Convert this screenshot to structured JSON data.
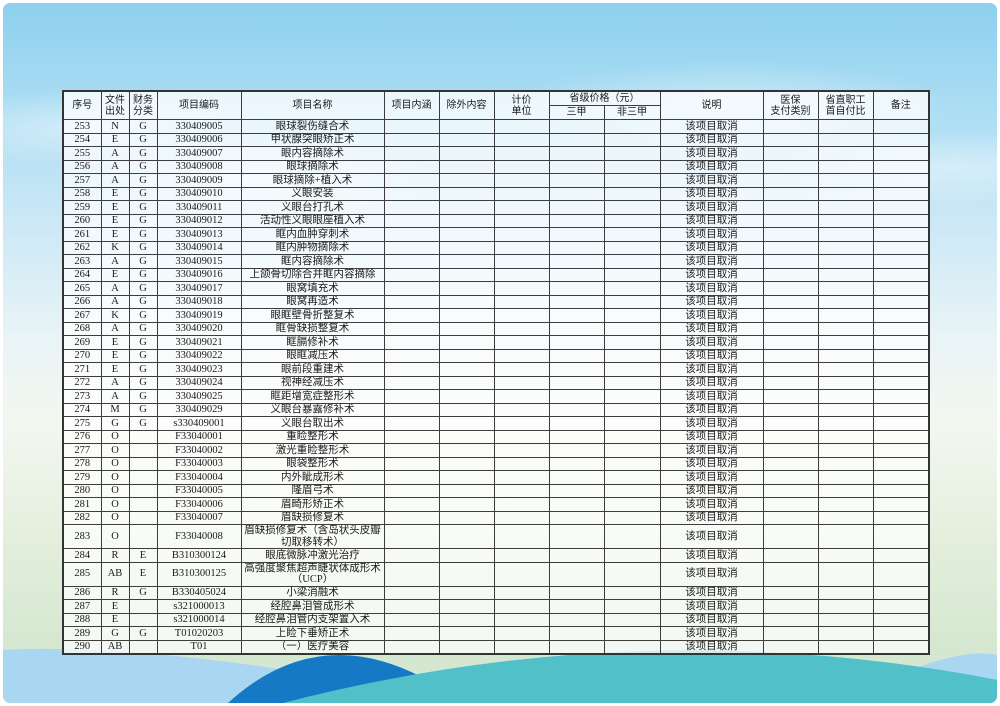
{
  "colors": {
    "sky-top": "#8dd0ee",
    "bg-bottom": "#d5e7d1",
    "hill-light": "#a9d6f1",
    "hill-dark": "#1679c6",
    "hill-teal": "#52c0c8",
    "table-border": "#333333",
    "text": "#1a1a1a"
  },
  "table": {
    "headers": {
      "no": "序号",
      "file_source": "文件\n出处",
      "finance_class": "财务\n分类",
      "item_code": "项目编码",
      "item_name": "项目名称",
      "item_content": "项目内涵",
      "excluded": "除外内容",
      "unit": "计价\n单位",
      "price_group": "省级价格（元）",
      "tier_3a": "三甲",
      "non_3a": "非三甲",
      "note": "说明",
      "pay_class": "医保\n支付类别",
      "self_pay": "省直职工\n首自付比",
      "remark": "备注"
    },
    "rows": [
      [
        "253",
        "N",
        "G",
        "330409005",
        "眼球裂伤缝合术",
        "",
        "",
        "",
        "",
        "",
        "该项目取消",
        "",
        "",
        ""
      ],
      [
        "254",
        "E",
        "G",
        "330409006",
        "甲状腺突眼矫正术",
        "",
        "",
        "",
        "",
        "",
        "该项目取消",
        "",
        "",
        ""
      ],
      [
        "255",
        "A",
        "G",
        "330409007",
        "眼内容摘除术",
        "",
        "",
        "",
        "",
        "",
        "该项目取消",
        "",
        "",
        ""
      ],
      [
        "256",
        "A",
        "G",
        "330409008",
        "眼球摘除术",
        "",
        "",
        "",
        "",
        "",
        "该项目取消",
        "",
        "",
        ""
      ],
      [
        "257",
        "A",
        "G",
        "330409009",
        "眼球摘除+植入术",
        "",
        "",
        "",
        "",
        "",
        "该项目取消",
        "",
        "",
        ""
      ],
      [
        "258",
        "E",
        "G",
        "330409010",
        "义眼安装",
        "",
        "",
        "",
        "",
        "",
        "该项目取消",
        "",
        "",
        ""
      ],
      [
        "259",
        "E",
        "G",
        "330409011",
        "义眼台打孔术",
        "",
        "",
        "",
        "",
        "",
        "该项目取消",
        "",
        "",
        ""
      ],
      [
        "260",
        "E",
        "G",
        "330409012",
        "活动性义眼眼座植入术",
        "",
        "",
        "",
        "",
        "",
        "该项目取消",
        "",
        "",
        ""
      ],
      [
        "261",
        "E",
        "G",
        "330409013",
        "眶内血肿穿刺术",
        "",
        "",
        "",
        "",
        "",
        "该项目取消",
        "",
        "",
        ""
      ],
      [
        "262",
        "K",
        "G",
        "330409014",
        "眶内肿物摘除术",
        "",
        "",
        "",
        "",
        "",
        "该项目取消",
        "",
        "",
        ""
      ],
      [
        "263",
        "A",
        "G",
        "330409015",
        "眶内容摘除术",
        "",
        "",
        "",
        "",
        "",
        "该项目取消",
        "",
        "",
        ""
      ],
      [
        "264",
        "E",
        "G",
        "330409016",
        "上颌骨切除合并眶内容摘除",
        "",
        "",
        "",
        "",
        "",
        "该项目取消",
        "",
        "",
        ""
      ],
      [
        "265",
        "A",
        "G",
        "330409017",
        "眼窝填充术",
        "",
        "",
        "",
        "",
        "",
        "该项目取消",
        "",
        "",
        ""
      ],
      [
        "266",
        "A",
        "G",
        "330409018",
        "眼窝再造术",
        "",
        "",
        "",
        "",
        "",
        "该项目取消",
        "",
        "",
        ""
      ],
      [
        "267",
        "K",
        "G",
        "330409019",
        "眼眶壁骨折整复术",
        "",
        "",
        "",
        "",
        "",
        "该项目取消",
        "",
        "",
        ""
      ],
      [
        "268",
        "A",
        "G",
        "330409020",
        "眶骨缺损整复术",
        "",
        "",
        "",
        "",
        "",
        "该项目取消",
        "",
        "",
        ""
      ],
      [
        "269",
        "E",
        "G",
        "330409021",
        "眶膈修补术",
        "",
        "",
        "",
        "",
        "",
        "该项目取消",
        "",
        "",
        ""
      ],
      [
        "270",
        "E",
        "G",
        "330409022",
        "眼眶减压术",
        "",
        "",
        "",
        "",
        "",
        "该项目取消",
        "",
        "",
        ""
      ],
      [
        "271",
        "E",
        "G",
        "330409023",
        "眼前段重建术",
        "",
        "",
        "",
        "",
        "",
        "该项目取消",
        "",
        "",
        ""
      ],
      [
        "272",
        "A",
        "G",
        "330409024",
        "视神经减压术",
        "",
        "",
        "",
        "",
        "",
        "该项目取消",
        "",
        "",
        ""
      ],
      [
        "273",
        "A",
        "G",
        "330409025",
        "眶距增宽症整形术",
        "",
        "",
        "",
        "",
        "",
        "该项目取消",
        "",
        "",
        ""
      ],
      [
        "274",
        "M",
        "G",
        "330409029",
        "义眼台暴露修补术",
        "",
        "",
        "",
        "",
        "",
        "该项目取消",
        "",
        "",
        ""
      ],
      [
        "275",
        "G",
        "G",
        "s330409001",
        "义眼台取出术",
        "",
        "",
        "",
        "",
        "",
        "该项目取消",
        "",
        "",
        ""
      ],
      [
        "276",
        "O",
        "",
        "F33040001",
        "重睑整形术",
        "",
        "",
        "",
        "",
        "",
        "该项目取消",
        "",
        "",
        ""
      ],
      [
        "277",
        "O",
        "",
        "F33040002",
        "激光重睑整形术",
        "",
        "",
        "",
        "",
        "",
        "该项目取消",
        "",
        "",
        ""
      ],
      [
        "278",
        "O",
        "",
        "F33040003",
        "眼袋整形术",
        "",
        "",
        "",
        "",
        "",
        "该项目取消",
        "",
        "",
        ""
      ],
      [
        "279",
        "O",
        "",
        "F33040004",
        "内外眦成形术",
        "",
        "",
        "",
        "",
        "",
        "该项目取消",
        "",
        "",
        ""
      ],
      [
        "280",
        "O",
        "",
        "F33040005",
        "隆眉弓术",
        "",
        "",
        "",
        "",
        "",
        "该项目取消",
        "",
        "",
        ""
      ],
      [
        "281",
        "O",
        "",
        "F33040006",
        "眉畸形矫正术",
        "",
        "",
        "",
        "",
        "",
        "该项目取消",
        "",
        "",
        ""
      ],
      [
        "282",
        "O",
        "",
        "F33040007",
        "眉缺损修复术",
        "",
        "",
        "",
        "",
        "",
        "该项目取消",
        "",
        "",
        ""
      ],
      [
        "283",
        "O",
        "",
        "F33040008",
        "眉缺损修复术（含岛状头皮瓣切取移转术）",
        "",
        "",
        "",
        "",
        "",
        "该项目取消",
        "",
        "",
        ""
      ],
      [
        "284",
        "R",
        "E",
        "B310300124",
        "眼底微脉冲激光治疗",
        "",
        "",
        "",
        "",
        "",
        "该项目取消",
        "",
        "",
        ""
      ],
      [
        "285",
        "AB",
        "E",
        "B310300125",
        "高强度聚焦超声睫状体成形术（UCP）",
        "",
        "",
        "",
        "",
        "",
        "该项目取消",
        "",
        "",
        ""
      ],
      [
        "286",
        "R",
        "G",
        "B330405024",
        "小梁消融术",
        "",
        "",
        "",
        "",
        "",
        "该项目取消",
        "",
        "",
        ""
      ],
      [
        "287",
        "E",
        "",
        "s321000013",
        "经腔鼻泪管成形术",
        "",
        "",
        "",
        "",
        "",
        "该项目取消",
        "",
        "",
        ""
      ],
      [
        "288",
        "E",
        "",
        "s321000014",
        "经腔鼻泪管内支架置入术",
        "",
        "",
        "",
        "",
        "",
        "该项目取消",
        "",
        "",
        ""
      ],
      [
        "289",
        "G",
        "G",
        "T01020203",
        "上睑下垂矫正术",
        "",
        "",
        "",
        "",
        "",
        "该项目取消",
        "",
        "",
        ""
      ],
      [
        "290",
        "AB",
        "",
        "T01",
        "（一）医疗美容",
        "",
        "",
        "",
        "",
        "",
        "该项目取消",
        "",
        "",
        ""
      ]
    ]
  }
}
